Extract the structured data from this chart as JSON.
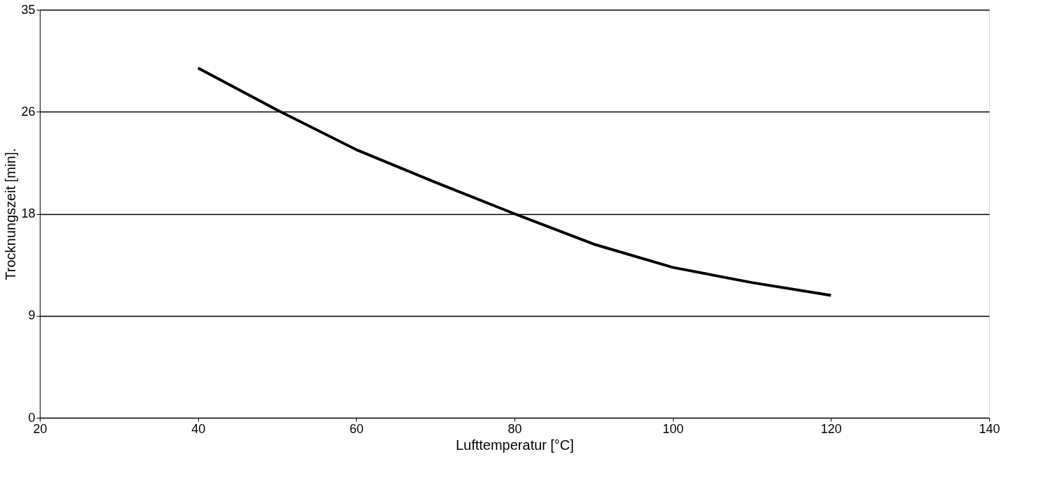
{
  "chart_data": {
    "type": "line",
    "xlabel": "Lufttemperatur [°C]",
    "ylabel": "Trocknungszeit [min].",
    "x": [
      40,
      50,
      60,
      70,
      80,
      90,
      100,
      110,
      120
    ],
    "series": [
      {
        "color": "#000000",
        "values": [
          30.0,
          26.4,
          23.0,
          20.2,
          17.5,
          14.9,
          12.9,
          11.6,
          10.5
        ]
      }
    ],
    "xlim": [
      20,
      140
    ],
    "xticks": [
      20,
      40,
      60,
      80,
      100,
      120,
      140
    ],
    "ylim": [
      0,
      35
    ],
    "yticks": [
      0,
      {
        "value": 8.75,
        "label": "9"
      },
      {
        "value": 17.5,
        "label": "18"
      },
      {
        "value": 26.25,
        "label": "26"
      },
      35
    ],
    "grid": "y",
    "legend": false,
    "marker": "none",
    "line_style": "solid"
  }
}
